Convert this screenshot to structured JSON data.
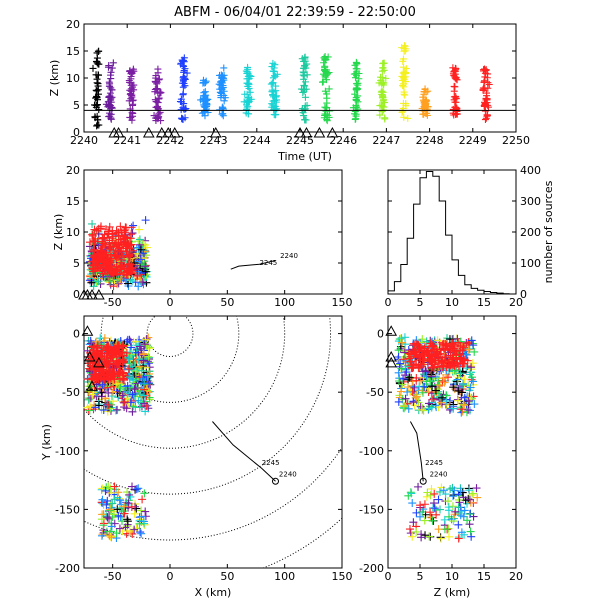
{
  "title": "ABFM - 06/04/01 22:39:59 - 22:50:00",
  "colors": {
    "black": "#000000",
    "purple": "#6a1b9a",
    "violet": "#7b1fa2",
    "blue": "#1f3fff",
    "azure": "#1e90ff",
    "cyan": "#19d3d3",
    "teal": "#1ec9a0",
    "green": "#25d84d",
    "lime": "#9cf025",
    "yellow": "#f4f020",
    "orange": "#ffa020",
    "red": "#ff2020"
  },
  "chart_data": [
    {
      "type": "scatter",
      "panel": "time-height",
      "title": "ABFM - 06/04/01 22:39:59 - 22:50:00",
      "xlabel": "Time (UT)",
      "ylabel": "Z (km)",
      "xlim": [
        2240,
        2250
      ],
      "ylim": [
        0,
        20
      ],
      "xticks": [
        "2240",
        "2241",
        "2242",
        "2243",
        "2244",
        "2245",
        "2246",
        "2247",
        "2248",
        "2249",
        "2250"
      ],
      "yticks": [
        "0",
        "5",
        "10",
        "15",
        "20"
      ],
      "reference_line_z": 4,
      "station_triangles_time": [
        2240.7,
        2240.8,
        2241.5,
        2241.8,
        2241.95,
        2242.1,
        2243.05,
        2245.0,
        2245.15,
        2245.45,
        2245.75
      ],
      "clusters": [
        {
          "t": 2240.3,
          "zmin": 1,
          "zmax": 15,
          "color": "black"
        },
        {
          "t": 2240.6,
          "zmin": 2,
          "zmax": 13,
          "color": "purple"
        },
        {
          "t": 2241.1,
          "zmin": 2,
          "zmax": 12,
          "color": "violet"
        },
        {
          "t": 2241.7,
          "zmin": 2,
          "zmax": 12,
          "color": "violet"
        },
        {
          "t": 2242.3,
          "zmin": 2,
          "zmax": 14,
          "color": "blue"
        },
        {
          "t": 2242.8,
          "zmin": 3,
          "zmax": 10,
          "color": "azure"
        },
        {
          "t": 2243.2,
          "zmin": 3,
          "zmax": 12,
          "color": "azure"
        },
        {
          "t": 2243.8,
          "zmin": 3,
          "zmax": 12,
          "color": "cyan"
        },
        {
          "t": 2244.4,
          "zmin": 3,
          "zmax": 13,
          "color": "cyan"
        },
        {
          "t": 2245.1,
          "zmin": 2,
          "zmax": 15,
          "color": "teal"
        },
        {
          "t": 2245.6,
          "zmin": 2,
          "zmax": 14,
          "color": "green"
        },
        {
          "t": 2246.3,
          "zmin": 2,
          "zmax": 13,
          "color": "green"
        },
        {
          "t": 2246.9,
          "zmin": 2,
          "zmax": 13,
          "color": "lime"
        },
        {
          "t": 2247.4,
          "zmin": 2,
          "zmax": 16,
          "color": "yellow"
        },
        {
          "t": 2247.9,
          "zmin": 3,
          "zmax": 8,
          "color": "orange"
        },
        {
          "t": 2248.6,
          "zmin": 3,
          "zmax": 12,
          "color": "red"
        },
        {
          "t": 2249.3,
          "zmin": 2,
          "zmax": 12,
          "color": "red"
        }
      ]
    },
    {
      "type": "scatter",
      "panel": "x-height",
      "ylabel": "Z (km)",
      "xlim": [
        -75,
        150
      ],
      "ylim": [
        0,
        20
      ],
      "xticks": [
        "-50",
        "0",
        "50",
        "100",
        "150"
      ],
      "yticks": [
        "0",
        "5",
        "10",
        "15",
        "20"
      ],
      "track_labels": [
        "2240",
        "2245"
      ]
    },
    {
      "type": "bar",
      "panel": "height-histogram",
      "ylabel": "number of sources",
      "xlim": [
        0,
        20
      ],
      "ylim": [
        0,
        400
      ],
      "xticks": [
        "0",
        "5",
        "10",
        "15",
        "20"
      ],
      "yticks": [
        "0",
        "100",
        "200",
        "300",
        "400"
      ],
      "categories": [
        1,
        2,
        3,
        4,
        5,
        6,
        7,
        8,
        9,
        10,
        11,
        12,
        13,
        14,
        15,
        16,
        17,
        18,
        19
      ],
      "values": [
        10,
        40,
        95,
        180,
        290,
        375,
        395,
        380,
        300,
        190,
        110,
        60,
        30,
        18,
        12,
        8,
        5,
        3,
        1
      ]
    },
    {
      "type": "scatter",
      "panel": "plan-view",
      "xlabel": "X (km)",
      "ylabel": "Y (km)",
      "xlim": [
        -75,
        150
      ],
      "ylim": [
        -200,
        15
      ],
      "xticks": [
        "-50",
        "0",
        "50",
        "100",
        "150"
      ],
      "yticks": [
        "0",
        "-50",
        "-100",
        "-150",
        "-200"
      ],
      "range_rings_km": [
        20,
        60,
        100,
        140,
        180,
        220
      ],
      "track_labels": [
        "2245",
        "2240"
      ]
    },
    {
      "type": "scatter",
      "panel": "height-y",
      "xlabel": "Z (km)",
      "xlim": [
        0,
        20
      ],
      "ylim": [
        -200,
        15
      ],
      "xticks": [
        "0",
        "5",
        "10",
        "15",
        "20"
      ],
      "yticks": [
        "0",
        "-50",
        "-100",
        "-150",
        "-200"
      ],
      "track_labels": [
        "2245",
        "2240"
      ]
    }
  ]
}
